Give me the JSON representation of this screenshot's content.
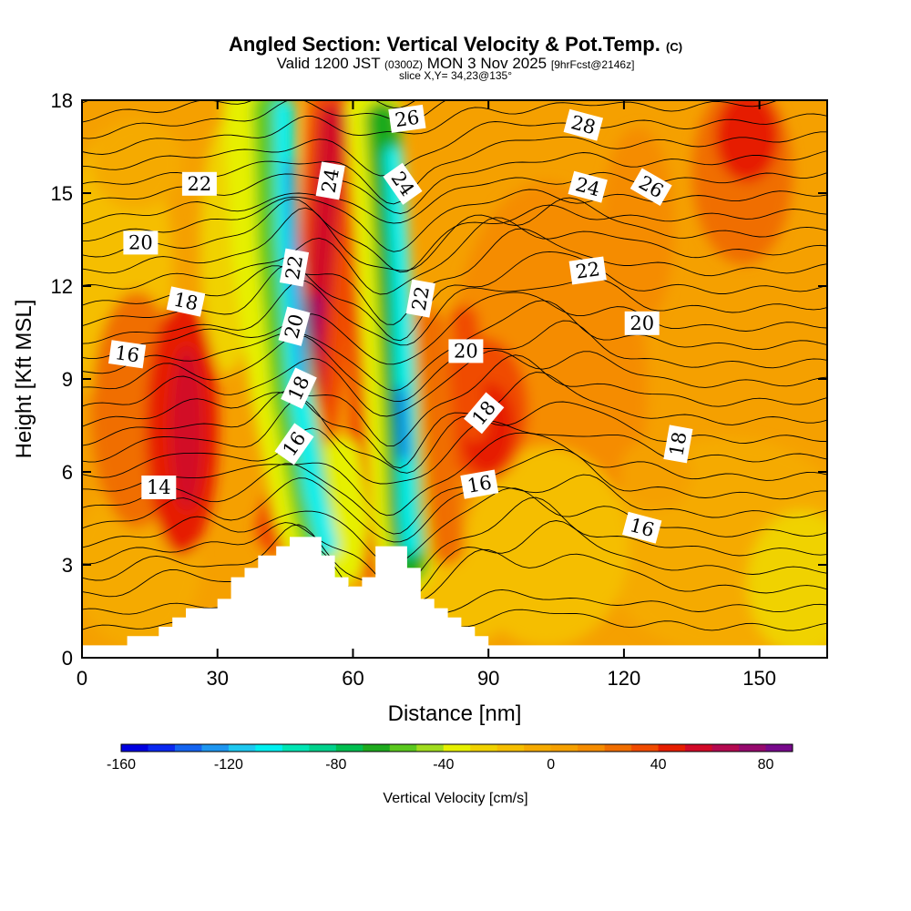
{
  "header": {
    "title": "Angled Section: Vertical Velocity & Pot.Temp.",
    "title_unit": "(C)",
    "valid_prefix": "Valid 1200 JST",
    "valid_utc": "(0300Z)",
    "valid_date": "MON 3 Nov 2025",
    "forecast": "[9hrFcst@2146z]",
    "slice": "slice X,Y= 34,23@135°"
  },
  "chart_data": {
    "type": "heatmap",
    "xlabel": "Distance [nm]",
    "ylabel": "Height [Kft MSL]",
    "xlim": [
      0,
      165
    ],
    "ylim": [
      0,
      18
    ],
    "x_ticks": [
      0,
      30,
      60,
      90,
      120,
      150
    ],
    "y_ticks": [
      0,
      3,
      6,
      9,
      12,
      15,
      18
    ],
    "colorbar": {
      "label": "Vertical Velocity [cm/s]",
      "range": [
        -160,
        90
      ],
      "step": 10,
      "tick_values": [
        -160,
        -120,
        -80,
        -40,
        0,
        40,
        80
      ],
      "colors": [
        "#0000e0",
        "#0a28f0",
        "#1464f0",
        "#1e96f0",
        "#1ec8f0",
        "#00f0f0",
        "#00e6b4",
        "#00d28c",
        "#00be50",
        "#1eaa1e",
        "#5ac81e",
        "#a0dc1e",
        "#e6f000",
        "#f0d200",
        "#f5be00",
        "#f5aa00",
        "#f5a000",
        "#f58c00",
        "#f06e00",
        "#f04b00",
        "#e61e00",
        "#d20a28",
        "#b40a50",
        "#960a6e",
        "#780a8c"
      ]
    },
    "terrain_kft": [
      [
        0,
        0.4
      ],
      [
        10,
        0.4
      ],
      [
        10,
        0.7
      ],
      [
        17,
        0.7
      ],
      [
        17,
        1.0
      ],
      [
        20,
        1.0
      ],
      [
        20,
        1.3
      ],
      [
        23,
        1.3
      ],
      [
        23,
        1.6
      ],
      [
        30,
        1.6
      ],
      [
        30,
        1.9
      ],
      [
        33,
        1.9
      ],
      [
        33,
        2.6
      ],
      [
        36,
        2.6
      ],
      [
        36,
        2.9
      ],
      [
        39,
        2.9
      ],
      [
        39,
        3.3
      ],
      [
        43,
        3.3
      ],
      [
        43,
        3.6
      ],
      [
        46,
        3.6
      ],
      [
        46,
        3.9
      ],
      [
        53,
        3.9
      ],
      [
        53,
        3.3
      ],
      [
        56,
        3.3
      ],
      [
        56,
        2.6
      ],
      [
        59,
        2.6
      ],
      [
        59,
        2.3
      ],
      [
        62,
        2.3
      ],
      [
        62,
        2.6
      ],
      [
        65,
        2.6
      ],
      [
        65,
        3.6
      ],
      [
        72,
        3.6
      ],
      [
        72,
        2.9
      ],
      [
        75,
        2.9
      ],
      [
        75,
        1.9
      ],
      [
        78,
        1.9
      ],
      [
        78,
        1.6
      ],
      [
        81,
        1.6
      ],
      [
        81,
        1.3
      ],
      [
        84,
        1.3
      ],
      [
        84,
        1.0
      ],
      [
        87,
        1.0
      ],
      [
        87,
        0.7
      ],
      [
        90,
        0.7
      ],
      [
        90,
        0.4
      ],
      [
        165,
        0.4
      ]
    ],
    "contour_labels": [
      {
        "text": "14",
        "x": 17,
        "y": 5.5,
        "rot": 0
      },
      {
        "text": "16",
        "x": 10,
        "y": 9.8,
        "rot": 8
      },
      {
        "text": "18",
        "x": 23,
        "y": 11.5,
        "rot": 12
      },
      {
        "text": "20",
        "x": 13,
        "y": 13.4,
        "rot": 0
      },
      {
        "text": "22",
        "x": 26,
        "y": 15.3,
        "rot": 0
      },
      {
        "text": "16",
        "x": 47,
        "y": 6.9,
        "rot": -55
      },
      {
        "text": "18",
        "x": 48,
        "y": 8.7,
        "rot": -65
      },
      {
        "text": "20",
        "x": 47,
        "y": 10.7,
        "rot": -75
      },
      {
        "text": "22",
        "x": 47,
        "y": 12.6,
        "rot": -80
      },
      {
        "text": "24",
        "x": 55,
        "y": 15.4,
        "rot": -80
      },
      {
        "text": "26",
        "x": 72,
        "y": 17.4,
        "rot": -8
      },
      {
        "text": "24",
        "x": 71,
        "y": 15.3,
        "rot": 55
      },
      {
        "text": "22",
        "x": 75,
        "y": 11.6,
        "rot": -80
      },
      {
        "text": "20",
        "x": 85,
        "y": 9.9,
        "rot": 0
      },
      {
        "text": "18",
        "x": 89,
        "y": 7.9,
        "rot": -50
      },
      {
        "text": "16",
        "x": 88,
        "y": 5.6,
        "rot": -10
      },
      {
        "text": "28",
        "x": 111,
        "y": 17.2,
        "rot": 15
      },
      {
        "text": "24",
        "x": 112,
        "y": 15.2,
        "rot": 15
      },
      {
        "text": "26",
        "x": 126,
        "y": 15.2,
        "rot": 30
      },
      {
        "text": "22",
        "x": 112,
        "y": 12.5,
        "rot": -8
      },
      {
        "text": "20",
        "x": 124,
        "y": 10.8,
        "rot": 0
      },
      {
        "text": "18",
        "x": 132,
        "y": 6.9,
        "rot": -80
      },
      {
        "text": "16",
        "x": 124,
        "y": 4.2,
        "rot": 15
      }
    ]
  }
}
